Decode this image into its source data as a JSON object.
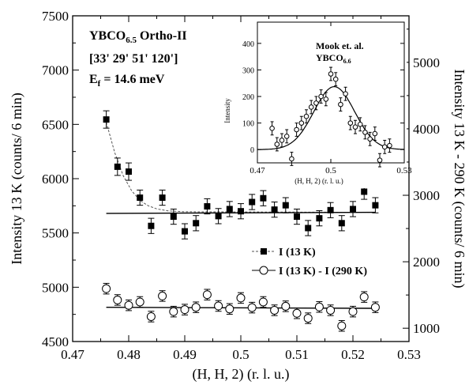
{
  "chart_data": [
    {
      "type": "scatter",
      "xlabel": "(H, H, 2) (r. l. u.)",
      "ylabel": "Intensity 13 K (counts/ 6 min)",
      "y2label": "Intensity 13 K - 290 K (counts/ 6 min)",
      "xlim": [
        0.47,
        0.53
      ],
      "ylim": [
        4500,
        7500
      ],
      "y2lim": [
        800,
        5700
      ],
      "xticks": [
        "0.47",
        "0.48",
        "0.49",
        "0.5",
        "0.51",
        "0.52",
        "0.53"
      ],
      "yticks": [
        "4500",
        "5000",
        "5500",
        "6000",
        "6500",
        "7000",
        "7500"
      ],
      "y2ticks": [
        "1000",
        "2000",
        "3000",
        "4000",
        "5000"
      ],
      "grid": false,
      "legend_position": "bottom-right",
      "annotations": {
        "sample": "YBCO",
        "sample_sub": "6.5",
        "sample_suffix": " Ortho-II",
        "collimation": "[33' 29' 51' 120']",
        "ef_main": "E",
        "ef_sub": "f",
        "ef_rest": " = 14.6 meV"
      },
      "series": [
        {
          "name": "I (13 K)",
          "axis": "left",
          "marker": "filled-square",
          "x": [
            0.476,
            0.478,
            0.48,
            0.482,
            0.484,
            0.486,
            0.488,
            0.49,
            0.492,
            0.494,
            0.496,
            0.498,
            0.5,
            0.502,
            0.504,
            0.506,
            0.508,
            0.51,
            0.512,
            0.514,
            0.516,
            0.518,
            0.52,
            0.522,
            0.524
          ],
          "y": [
            6545,
            6110,
            6065,
            5825,
            5565,
            5825,
            5650,
            5515,
            5590,
            5745,
            5655,
            5720,
            5700,
            5785,
            5820,
            5715,
            5755,
            5650,
            5545,
            5635,
            5710,
            5590,
            5720,
            5880,
            5755
          ],
          "err": [
            80,
            80,
            80,
            70,
            70,
            70,
            70,
            70,
            70,
            70,
            70,
            70,
            70,
            70,
            70,
            70,
            70,
            70,
            70,
            70,
            70,
            70,
            70,
            70,
            70
          ]
        },
        {
          "name": "I (13 K) - I (290 K)",
          "axis": "right",
          "marker": "open-circle",
          "x": [
            0.476,
            0.478,
            0.48,
            0.482,
            0.484,
            0.486,
            0.488,
            0.49,
            0.492,
            0.494,
            0.496,
            0.498,
            0.5,
            0.502,
            0.504,
            0.506,
            0.508,
            0.51,
            0.512,
            0.514,
            0.516,
            0.518,
            0.52,
            0.522,
            0.524
          ],
          "y": [
            1595,
            1425,
            1345,
            1395,
            1175,
            1485,
            1250,
            1280,
            1315,
            1505,
            1335,
            1290,
            1455,
            1310,
            1395,
            1270,
            1330,
            1225,
            1150,
            1320,
            1270,
            1035,
            1250,
            1470,
            1315
          ],
          "err": [
            80,
            80,
            80,
            80,
            80,
            80,
            80,
            80,
            80,
            80,
            80,
            80,
            80,
            80,
            80,
            80,
            80,
            80,
            80,
            80,
            80,
            80,
            80,
            80,
            80
          ]
        }
      ],
      "fits": [
        {
          "of": "I (13 K)",
          "style": "dashed",
          "x": [
            0.476,
            0.4775,
            0.479,
            0.4805,
            0.482,
            0.4835,
            0.485,
            0.487,
            0.49,
            0.524
          ],
          "y": [
            6520,
            6240,
            6030,
            5890,
            5800,
            5750,
            5722,
            5704,
            5695,
            5690
          ]
        },
        {
          "of": "I (13 K)",
          "style": "solid",
          "x": [
            0.476,
            0.524
          ],
          "y": [
            5680,
            5690
          ]
        },
        {
          "of": "I (13 K) - I (290 K)",
          "style": "solid",
          "x": [
            0.476,
            0.524
          ],
          "y": [
            1315,
            1300
          ]
        }
      ]
    },
    {
      "type": "scatter",
      "title": "Mook et. al.",
      "subtitle": "YBCO",
      "subtitle_sub": "6.6",
      "xlabel": "(H, H, 2) (r. l. u.)",
      "ylabel": "Intensity",
      "xlim": [
        0.47,
        0.53
      ],
      "ylim": [
        -50,
        480
      ],
      "xticks": [
        "0.47",
        "0.5",
        "0.53"
      ],
      "yticks": [
        "0",
        "100",
        "200",
        "300",
        "400"
      ],
      "series": [
        {
          "name": "",
          "marker": "open-circle",
          "x": [
            0.476,
            0.478,
            0.48,
            0.482,
            0.484,
            0.486,
            0.488,
            0.49,
            0.492,
            0.494,
            0.496,
            0.498,
            0.5,
            0.502,
            0.504,
            0.506,
            0.508,
            0.51,
            0.512,
            0.514,
            0.516,
            0.518,
            0.52,
            0.522,
            0.524
          ],
          "y": [
            80,
            20,
            35,
            50,
            -35,
            75,
            100,
            125,
            160,
            175,
            200,
            190,
            285,
            265,
            170,
            210,
            100,
            85,
            95,
            65,
            40,
            60,
            -40,
            10,
            15
          ],
          "err": [
            25,
            25,
            25,
            25,
            25,
            25,
            25,
            25,
            25,
            25,
            25,
            25,
            25,
            25,
            25,
            25,
            25,
            25,
            25,
            25,
            25,
            25,
            25,
            25,
            25
          ]
        }
      ],
      "fit": {
        "type": "gaussian",
        "center": 0.5014,
        "amplitude": 237,
        "sigma": 0.0083,
        "baseline": 0
      }
    }
  ]
}
